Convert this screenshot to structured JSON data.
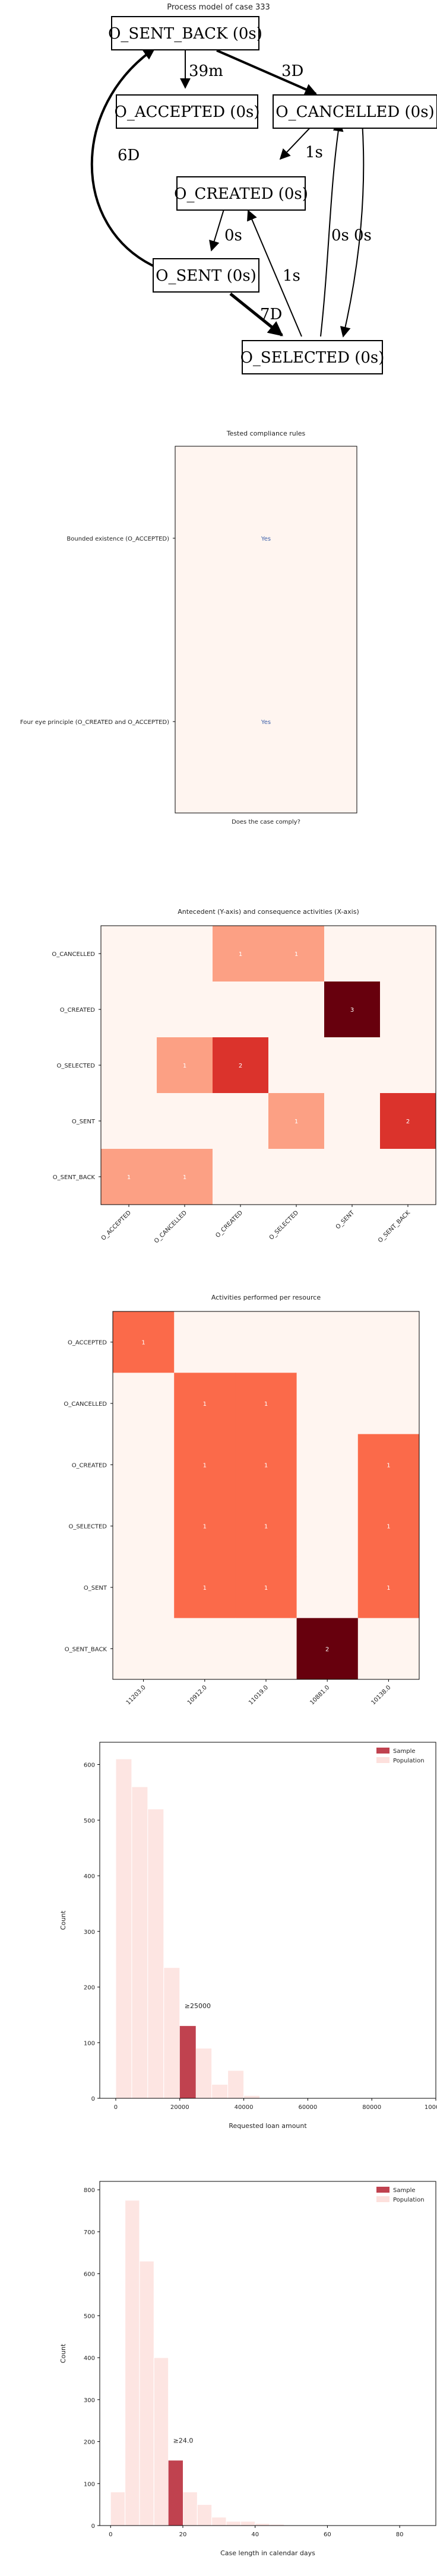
{
  "process_model": {
    "title": "Process model of case 333",
    "nodes": [
      {
        "id": "sent_back",
        "label": "O_SENT_BACK (0s)"
      },
      {
        "id": "accepted",
        "label": "O_ACCEPTED (0s)"
      },
      {
        "id": "cancelled",
        "label": "O_CANCELLED (0s)"
      },
      {
        "id": "created",
        "label": "O_CREATED (0s)"
      },
      {
        "id": "sent",
        "label": "O_SENT (0s)"
      },
      {
        "id": "selected",
        "label": "O_SELECTED (0s)"
      }
    ],
    "edges": [
      {
        "from": "sent_back",
        "to": "accepted",
        "label": "39m"
      },
      {
        "from": "sent_back",
        "to": "cancelled",
        "label": "3D"
      },
      {
        "from": "sent",
        "to": "sent_back",
        "label": "6D"
      },
      {
        "from": "cancelled",
        "to": "created",
        "label": "1s"
      },
      {
        "from": "created",
        "to": "sent",
        "label": "0s"
      },
      {
        "from": "selected",
        "to": "created",
        "label": "1s"
      },
      {
        "from": "sent",
        "to": "selected",
        "label": "7D"
      },
      {
        "from": "selected",
        "to": "cancelled",
        "label": "0s"
      },
      {
        "from": "cancelled",
        "to": "selected",
        "label": "0s"
      }
    ]
  },
  "compliance": {
    "title": "Tested compliance rules",
    "xlabel": "Does the case comply?",
    "rules": [
      {
        "label": "Bounded existence (O_ACCEPTED)",
        "value": "Yes"
      },
      {
        "label": "Four eye principle (O_CREATED and O_ACCEPTED)",
        "value": "Yes"
      }
    ]
  },
  "chart_data": [
    {
      "type": "heatmap",
      "title": "Antecedent (Y-axis) and consequence activities (X-axis)",
      "x": [
        "O_ACCEPTED",
        "O_CANCELLED",
        "O_CREATED",
        "O_SELECTED",
        "O_SENT",
        "O_SENT_BACK"
      ],
      "y": [
        "O_CANCELLED",
        "O_CREATED",
        "O_SELECTED",
        "O_SENT",
        "O_SENT_BACK"
      ],
      "values": [
        [
          0,
          0,
          1,
          1,
          0,
          0
        ],
        [
          0,
          0,
          0,
          0,
          3,
          0
        ],
        [
          0,
          1,
          2,
          0,
          0,
          0
        ],
        [
          0,
          0,
          0,
          1,
          0,
          2
        ],
        [
          1,
          1,
          0,
          0,
          0,
          0
        ]
      ]
    },
    {
      "type": "heatmap",
      "title": "Activities performed per resource",
      "x": [
        "11203.0",
        "10912.0",
        "11019.0",
        "10881.0",
        "10138.0"
      ],
      "y": [
        "O_ACCEPTED",
        "O_CANCELLED",
        "O_CREATED",
        "O_SELECTED",
        "O_SENT",
        "O_SENT_BACK"
      ],
      "values": [
        [
          1,
          0,
          0,
          0,
          0
        ],
        [
          0,
          1,
          1,
          0,
          0
        ],
        [
          0,
          1,
          1,
          0,
          1
        ],
        [
          0,
          1,
          1,
          0,
          1
        ],
        [
          0,
          1,
          1,
          0,
          1
        ],
        [
          0,
          0,
          0,
          2,
          0
        ]
      ]
    },
    {
      "type": "bar",
      "xlabel": "Requested loan amount",
      "ylabel": "Count",
      "xlim": [
        -5000,
        100000
      ],
      "ylim": [
        0,
        640
      ],
      "xticks": [
        "0",
        "20000",
        "40000",
        "60000",
        "80000",
        "100000"
      ],
      "yticks": [
        "0",
        "100",
        "200",
        "300",
        "400",
        "500",
        "600"
      ],
      "bin_width": 5000,
      "series": [
        {
          "name": "Population",
          "bins": [
            {
              "x0": 0,
              "count": 610
            },
            {
              "x0": 5000,
              "count": 560
            },
            {
              "x0": 10000,
              "count": 520
            },
            {
              "x0": 15000,
              "count": 235
            },
            {
              "x0": 20000,
              "count": 130
            },
            {
              "x0": 25000,
              "count": 90
            },
            {
              "x0": 30000,
              "count": 25
            },
            {
              "x0": 35000,
              "count": 50
            },
            {
              "x0": 40000,
              "count": 5
            }
          ]
        },
        {
          "name": "Sample",
          "bins": [
            {
              "x0": 20000,
              "count": 130
            }
          ]
        }
      ],
      "annotation": "≥25000",
      "legend": "top-right"
    },
    {
      "type": "bar",
      "xlabel": "Case length in calendar days",
      "ylabel": "Count",
      "xlim": [
        -3,
        90
      ],
      "ylim": [
        0,
        820
      ],
      "xticks": [
        "0",
        "20",
        "40",
        "60",
        "80"
      ],
      "yticks": [
        "0",
        "100",
        "200",
        "300",
        "400",
        "500",
        "600",
        "700",
        "800"
      ],
      "bin_width": 4,
      "series": [
        {
          "name": "Population",
          "bins": [
            {
              "x0": 0,
              "count": 80
            },
            {
              "x0": 4,
              "count": 775
            },
            {
              "x0": 8,
              "count": 630
            },
            {
              "x0": 12,
              "count": 400
            },
            {
              "x0": 16,
              "count": 155
            },
            {
              "x0": 20,
              "count": 80
            },
            {
              "x0": 24,
              "count": 50
            },
            {
              "x0": 28,
              "count": 20
            },
            {
              "x0": 32,
              "count": 10
            },
            {
              "x0": 36,
              "count": 10
            },
            {
              "x0": 40,
              "count": 5
            },
            {
              "x0": 44,
              "count": 3
            }
          ]
        },
        {
          "name": "Sample",
          "bins": [
            {
              "x0": 16,
              "count": 155
            }
          ]
        }
      ],
      "annotation": "≥24.0",
      "legend": "top-right"
    }
  ]
}
